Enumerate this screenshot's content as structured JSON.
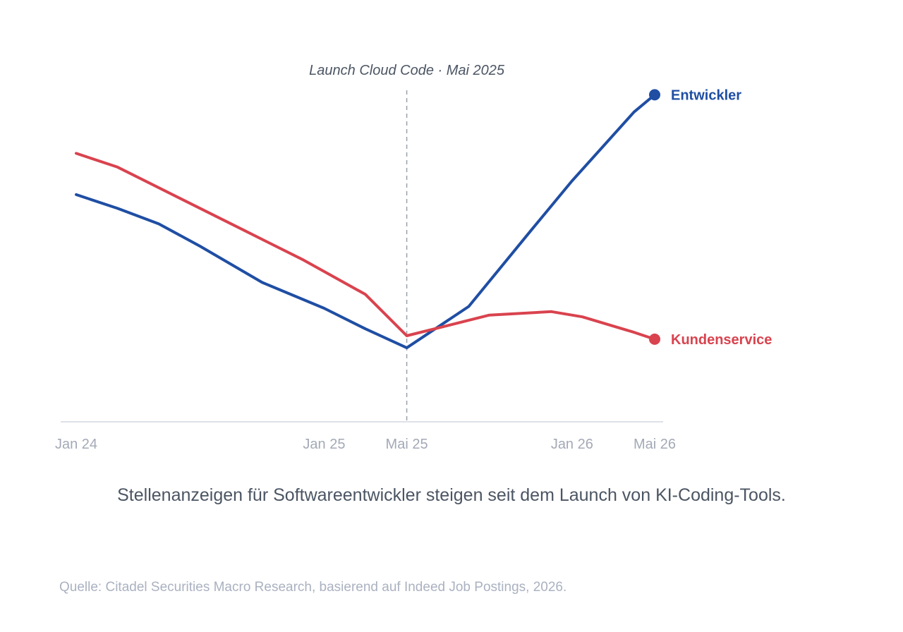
{
  "chart_data": {
    "type": "line",
    "xlabel": "",
    "ylabel": "",
    "x_ticks": [
      {
        "label": "Jan 24",
        "month": 0
      },
      {
        "label": "Jan 25",
        "month": 12
      },
      {
        "label": "Mai 25",
        "month": 16
      },
      {
        "label": "Jan 26",
        "month": 24
      },
      {
        "label": "Mai 26",
        "month": 28
      }
    ],
    "x_range_months": [
      0,
      28
    ],
    "ylim": [
      0,
      100
    ],
    "grid": false,
    "annotation": {
      "label": "Launch Cloud Code · Mai 2025",
      "month": 16
    },
    "series": [
      {
        "name": "Entwickler",
        "color": "#1f4ea3",
        "points": [
          [
            0,
            66
          ],
          [
            2,
            62
          ],
          [
            4,
            57.5
          ],
          [
            6,
            51
          ],
          [
            9,
            40.5
          ],
          [
            12,
            33
          ],
          [
            14,
            27
          ],
          [
            16,
            21.5
          ],
          [
            19,
            33.5
          ],
          [
            22,
            55.5
          ],
          [
            24,
            70
          ],
          [
            27,
            90
          ],
          [
            28,
            95
          ]
        ]
      },
      {
        "name": "Kundenservice",
        "color": "#d9434e",
        "points": [
          [
            0,
            78
          ],
          [
            2,
            74
          ],
          [
            5,
            65
          ],
          [
            8,
            56
          ],
          [
            11,
            47
          ],
          [
            14,
            37
          ],
          [
            16,
            25
          ],
          [
            18,
            28
          ],
          [
            20,
            31
          ],
          [
            23,
            32
          ],
          [
            24.5,
            30.5
          ],
          [
            27,
            26
          ],
          [
            28,
            24
          ]
        ]
      }
    ]
  },
  "caption": "Stellenanzeigen für Softwareentwickler steigen seit dem Launch von KI-Coding-Tools.",
  "source": "Quelle: Citadel Securities Macro Research, basierend auf Indeed Job Postings, 2026."
}
